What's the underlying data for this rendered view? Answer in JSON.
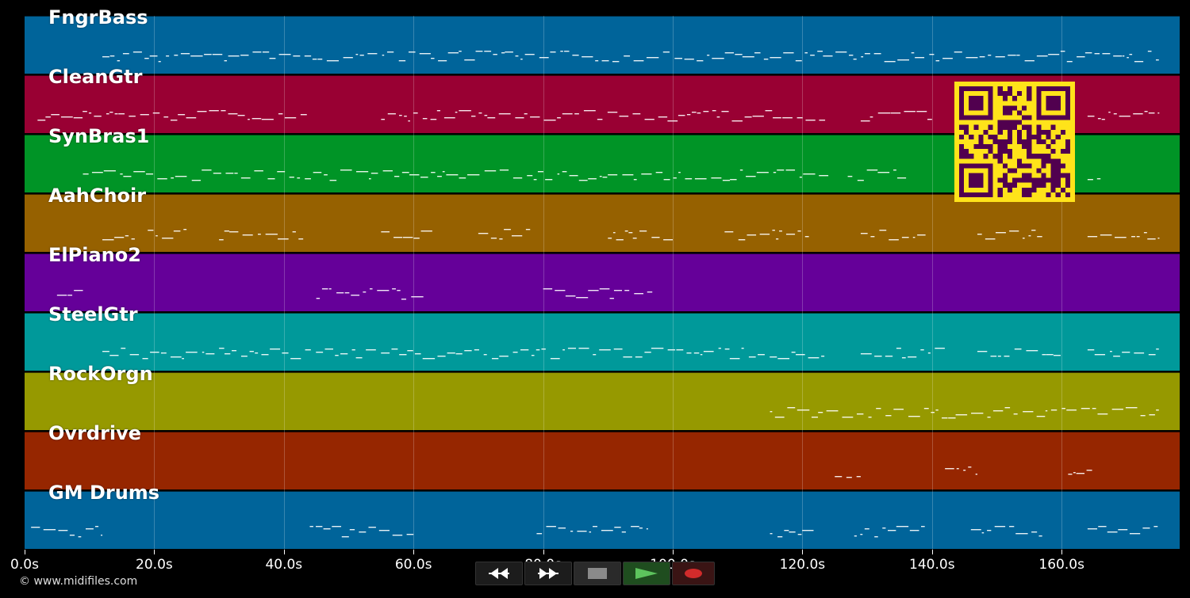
{
  "app": "MIDI piano-roll player",
  "tracks": [
    {
      "name": "FngrBass",
      "color": "#00649a"
    },
    {
      "name": "CleanGtr",
      "color": "#990033"
    },
    {
      "name": "SynBras1",
      "color": "#009426"
    },
    {
      "name": "AahChoir",
      "color": "#966100"
    },
    {
      "name": "ElPiano2",
      "color": "#650099"
    },
    {
      "name": "SteelGtr",
      "color": "#00999a"
    },
    {
      "name": "RockOrgn",
      "color": "#969900"
    },
    {
      "name": "Ovrdrive",
      "color": "#962600"
    },
    {
      "name": "GM Drums",
      "color": "#00649a"
    }
  ],
  "time_axis": {
    "ticks": [
      "0.0s",
      "20.0s",
      "40.0s",
      "60.0s",
      "80.0s",
      "100.0s",
      "120.0s",
      "140.0s",
      "160.0s"
    ],
    "max_seconds": 178
  },
  "copyright": "© www.midifiles.com",
  "controls": [
    {
      "name": "rewind-button",
      "icon": "rewind-icon",
      "color": "#ffffff"
    },
    {
      "name": "fast-forward-button",
      "icon": "fast-forward-icon",
      "color": "#ffffff"
    },
    {
      "name": "stop-button",
      "icon": "stop-icon",
      "color": "#8a8a8a"
    },
    {
      "name": "play-button",
      "icon": "play-icon",
      "color": "#5dc35d"
    },
    {
      "name": "record-button",
      "icon": "record-icon",
      "color": "#d12b2b"
    }
  ],
  "qr_code": {
    "foreground": "#51004f",
    "background": "#ffe31a"
  },
  "note_color": "#ffffff"
}
